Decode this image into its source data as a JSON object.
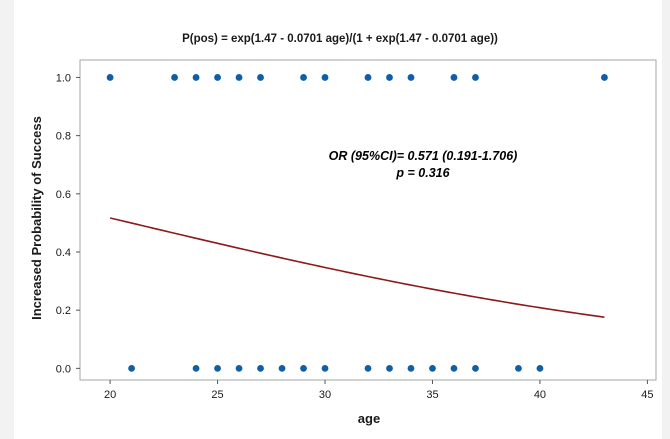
{
  "chart_data": {
    "type": "scatter",
    "title": "P(pos) = exp(1.47 - 0.0701 age)/(1 + exp(1.47 - 0.0701 age))",
    "xlabel": "age",
    "ylabel": "Increased Probability of Success",
    "xlim": [
      18.6,
      45.4
    ],
    "ylim": [
      -0.04,
      1.06
    ],
    "xticks": [
      "20",
      "25",
      "30",
      "35",
      "40",
      "45"
    ],
    "yticks": [
      "0.0",
      "0.2",
      "0.4",
      "0.6",
      "0.8",
      "1.0"
    ],
    "grid": false,
    "annotations": [
      "OR (95%CI)= 0.571 (0.191-1.706)",
      "p = 0.316"
    ],
    "points": {
      "color": "#0f5fa8",
      "x": [
        20,
        23,
        24,
        25,
        26,
        27,
        29,
        30,
        32,
        33,
        34,
        36,
        37,
        43,
        21,
        24,
        25,
        26,
        27,
        28,
        29,
        30,
        32,
        33,
        34,
        35,
        36,
        37,
        39,
        40
      ],
      "y": [
        1,
        1,
        1,
        1,
        1,
        1,
        1,
        1,
        1,
        1,
        1,
        1,
        1,
        1,
        0,
        0,
        0,
        0,
        0,
        0,
        0,
        0,
        0,
        0,
        0,
        0,
        0,
        0,
        0,
        0
      ]
    },
    "fit_line": {
      "color": "#8b1a1a",
      "equation": {
        "intercept": 1.47,
        "slope": -0.0701
      },
      "x_range": [
        20,
        43
      ]
    }
  }
}
